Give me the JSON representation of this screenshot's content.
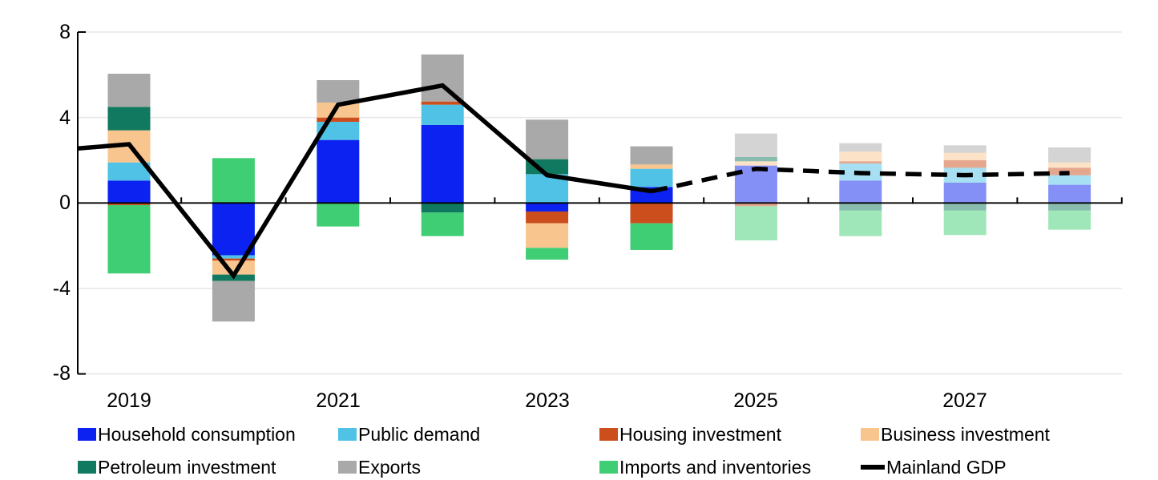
{
  "chart_data": {
    "type": "bar",
    "subtype": "stacked-bars-with-line",
    "title": "",
    "xlabel": "",
    "ylabel": "",
    "ylim": [
      -8,
      8
    ],
    "y_tick_labels": [
      "8",
      "4",
      "0",
      "-4",
      "-8"
    ],
    "y_tick_values": [
      8,
      4,
      0,
      -4,
      -8
    ],
    "x_tick_labels": [
      "2019",
      "2021",
      "2023",
      "2025",
      "2027"
    ],
    "x_tick_year_indices": [
      0,
      2,
      4,
      6,
      8
    ],
    "categories": [
      "2019",
      "2020",
      "2021",
      "2022",
      "2023",
      "2024",
      "2025",
      "2026",
      "2027",
      "2028"
    ],
    "forecast_start_index": 6,
    "forecast_opacity": 0.5,
    "grid_color": "#e7e7e7",
    "axis_color": "#000000",
    "series": [
      {
        "name": "Household consumption",
        "color": "#0b22f0",
        "values": [
          1.05,
          -2.45,
          2.95,
          3.65,
          -0.4,
          0.75,
          1.75,
          1.05,
          0.95,
          0.85
        ]
      },
      {
        "name": "Public demand",
        "color": "#4fc2e6",
        "values": [
          0.85,
          -0.15,
          0.85,
          0.95,
          1.35,
          0.85,
          0.0,
          0.8,
          0.7,
          0.45
        ]
      },
      {
        "name": "Housing investment",
        "color": "#cc4e1d",
        "values": [
          -0.1,
          -0.1,
          0.2,
          0.15,
          -0.55,
          -0.95,
          -0.15,
          0.1,
          0.35,
          0.35
        ]
      },
      {
        "name": "Business investment",
        "color": "#f9c58f",
        "values": [
          1.5,
          -0.65,
          0.7,
          0.0,
          -1.15,
          0.2,
          0.2,
          0.45,
          0.35,
          0.25
        ]
      },
      {
        "name": "Petroleum investment",
        "color": "#11795f",
        "values": [
          1.1,
          -0.3,
          0.0,
          -0.45,
          0.7,
          0.0,
          0.2,
          -0.35,
          -0.35,
          -0.35
        ]
      },
      {
        "name": "Exports",
        "color": "#a9a9a9",
        "values": [
          1.55,
          -1.9,
          1.05,
          2.2,
          1.85,
          0.85,
          1.1,
          0.4,
          0.35,
          0.7
        ]
      },
      {
        "name": "Imports and inventories",
        "color": "#3fce73",
        "values": [
          -3.2,
          2.1,
          -1.1,
          -1.1,
          -0.55,
          -1.25,
          -1.6,
          -1.2,
          -1.15,
          -0.9
        ]
      }
    ],
    "line": {
      "name": "Mainland GDP",
      "color": "#000000",
      "edge_start_value": 2.55,
      "values": [
        2.75,
        -3.4,
        4.6,
        5.5,
        1.3,
        0.55,
        1.6,
        1.4,
        1.3,
        1.4
      ],
      "solid_through_index": 5,
      "dash_style": "dashed-after-solid"
    }
  }
}
